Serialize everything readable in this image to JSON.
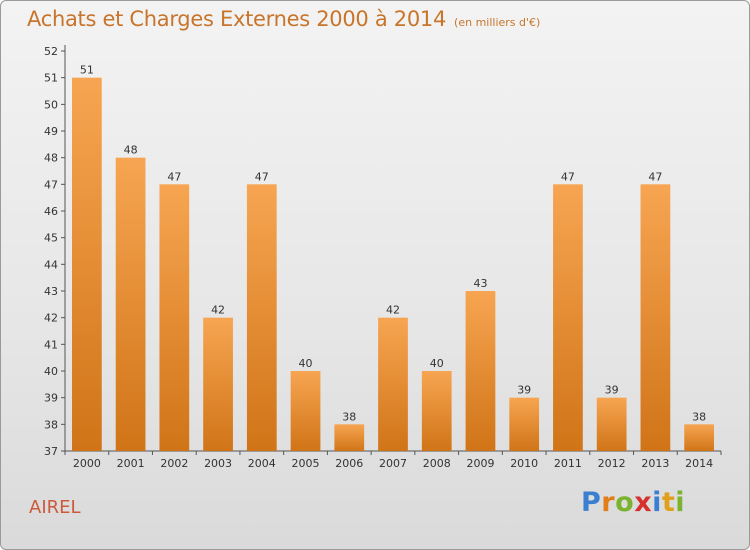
{
  "header": {
    "title": "Achats et Charges Externes 2000 à 2014",
    "subtitle": "(en milliers d'€)"
  },
  "footer": {
    "commune": "AIREL",
    "brand_letters": [
      {
        "char": "P",
        "color": "#3a7fd0"
      },
      {
        "char": "r",
        "color": "#e07f1a"
      },
      {
        "char": "o",
        "color": "#7bb32e"
      },
      {
        "char": "x",
        "color": "#d6302f"
      },
      {
        "char": "i",
        "color": "#3a7fd0"
      },
      {
        "char": "t",
        "color": "#e0a01a"
      },
      {
        "char": "i",
        "color": "#7bb32e"
      }
    ]
  },
  "colors": {
    "bar_top": "#f7a552",
    "bar_bottom": "#d07417",
    "text": "#333333",
    "title": "#c8752b"
  },
  "chart_data": {
    "type": "bar",
    "title": "Achats et Charges Externes 2000 à 2014",
    "subtitle": "(en milliers d'€)",
    "xlabel": "",
    "ylabel": "",
    "categories": [
      "2000",
      "2001",
      "2002",
      "2003",
      "2004",
      "2005",
      "2006",
      "2007",
      "2008",
      "2009",
      "2010",
      "2011",
      "2012",
      "2013",
      "2014"
    ],
    "values": [
      51,
      48,
      47,
      42,
      47,
      40,
      38,
      42,
      40,
      43,
      39,
      47,
      39,
      47,
      38
    ],
    "data_labels": [
      "51",
      "48",
      "47",
      "42",
      "47",
      "40",
      "38",
      "42",
      "40",
      "43",
      "39",
      "47",
      "39",
      "47",
      "38"
    ],
    "ylim": [
      37,
      52
    ],
    "yticks": [
      37,
      38,
      39,
      40,
      41,
      42,
      43,
      44,
      45,
      46,
      47,
      48,
      49,
      50,
      51,
      52
    ],
    "grid": false,
    "legend": "none"
  }
}
